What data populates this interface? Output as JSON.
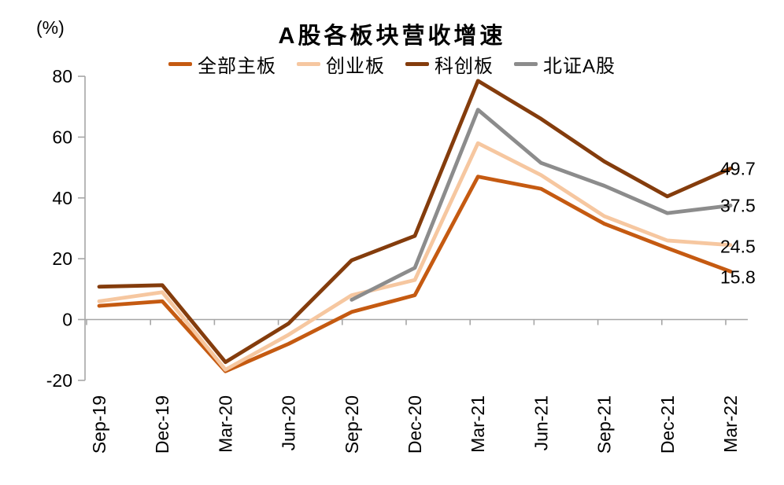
{
  "title": "A股各板块营收增速",
  "y_unit": "(%)",
  "chart_data": {
    "type": "line",
    "title": "A股各板块营收增速",
    "y_unit": "(%)",
    "categories": [
      "Sep-19",
      "Dec-19",
      "Mar-20",
      "Jun-20",
      "Sep-20",
      "Dec-20",
      "Mar-21",
      "Jun-21",
      "Sep-21",
      "Dec-21",
      "Mar-22"
    ],
    "series": [
      {
        "name": "全部主板",
        "color": "#C55A11",
        "end_label": "15.8",
        "values": [
          4.5,
          6.0,
          -17.0,
          -8.0,
          2.5,
          8.0,
          47.0,
          43.0,
          31.5,
          23.5,
          15.8
        ]
      },
      {
        "name": "创业板",
        "color": "#F6C7A0",
        "end_label": "24.5",
        "values": [
          6.0,
          9.0,
          -16.5,
          -5.0,
          8.0,
          13.0,
          58.0,
          47.5,
          34.0,
          26.0,
          24.5
        ]
      },
      {
        "name": "科创板",
        "color": "#843C0C",
        "end_label": "49.7",
        "values": [
          10.8,
          11.3,
          -14.0,
          -1.3,
          19.5,
          27.5,
          78.5,
          66.0,
          52.0,
          40.5,
          49.7
        ]
      },
      {
        "name": "北证A股",
        "color": "#8C8C8C",
        "end_label": "37.5",
        "values": [
          null,
          null,
          null,
          null,
          6.5,
          17.0,
          69.0,
          51.5,
          44.0,
          35.0,
          37.5
        ]
      }
    ],
    "ylim": [
      -20,
      80
    ],
    "yticks": [
      80,
      60,
      40,
      20,
      0,
      -20
    ],
    "grid": "zero-line-only",
    "legend_position": "top",
    "axis_color": "#A6A6A6"
  }
}
